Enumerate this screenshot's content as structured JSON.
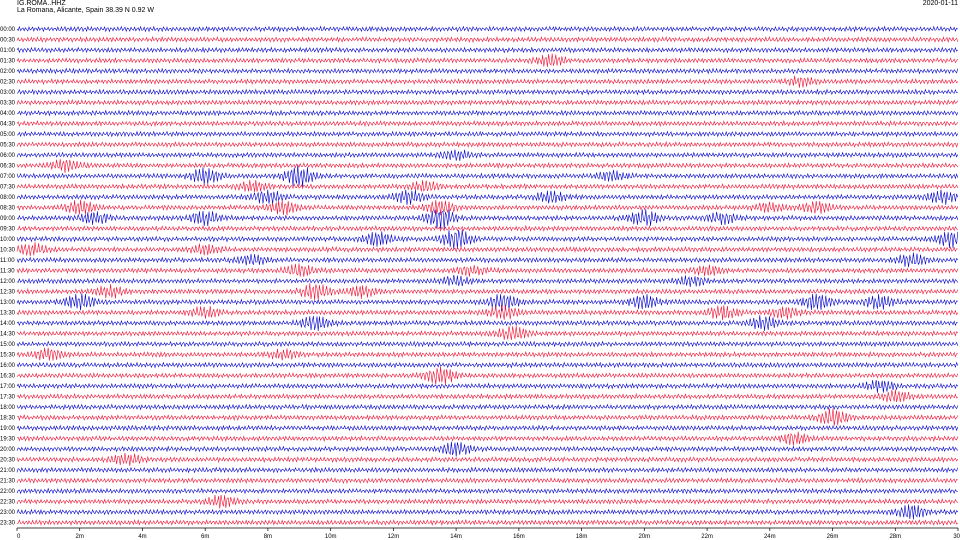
{
  "header": {
    "station": "IG.ROMA..HHZ",
    "location": "La Romana, Alicante, Spain   38.39 N 0.92 W",
    "date": "2020-01-11"
  },
  "chart_data": {
    "type": "line",
    "title": "",
    "xlabel": "",
    "ylabel": "",
    "colors": [
      "#0000cc",
      "#ee1133"
    ],
    "x_ticks": [
      "0",
      "2m",
      "4m",
      "6m",
      "8m",
      "10m",
      "12m",
      "14m",
      "16m",
      "18m",
      "20m",
      "22m",
      "24m",
      "26m",
      "28m",
      "30"
    ],
    "xlim": [
      0,
      30
    ],
    "row_labels": [
      "00:00",
      "00:30",
      "01:00",
      "01:30",
      "02:00",
      "02:30",
      "03:00",
      "03:30",
      "04:00",
      "04:30",
      "05:00",
      "05:30",
      "06:00",
      "06:30",
      "07:00",
      "07:30",
      "08:00",
      "08:30",
      "09:00",
      "09:30",
      "10:00",
      "10:30",
      "11:00",
      "11:30",
      "12:00",
      "12:30",
      "13:00",
      "13:30",
      "14:00",
      "14:30",
      "15:00",
      "15:30",
      "16:00",
      "16:30",
      "17:00",
      "17:30",
      "18:00",
      "18:30",
      "19:00",
      "19:30",
      "20:00",
      "20:30",
      "21:00",
      "21:30",
      "22:00",
      "22:30",
      "23:00",
      "23:30"
    ],
    "bursts": [
      {
        "row": 3,
        "minute": 17.0,
        "amp": 5
      },
      {
        "row": 5,
        "minute": 25.0,
        "amp": 4
      },
      {
        "row": 12,
        "minute": 14.0,
        "amp": 4
      },
      {
        "row": 13,
        "minute": 1.5,
        "amp": 5
      },
      {
        "row": 14,
        "minute": 6.0,
        "amp": 7
      },
      {
        "row": 14,
        "minute": 9.0,
        "amp": 9
      },
      {
        "row": 14,
        "minute": 19.0,
        "amp": 4
      },
      {
        "row": 15,
        "minute": 7.5,
        "amp": 5
      },
      {
        "row": 15,
        "minute": 13.0,
        "amp": 4
      },
      {
        "row": 16,
        "minute": 8.0,
        "amp": 6
      },
      {
        "row": 16,
        "minute": 12.5,
        "amp": 6
      },
      {
        "row": 16,
        "minute": 17.0,
        "amp": 5
      },
      {
        "row": 16,
        "minute": 29.5,
        "amp": 6
      },
      {
        "row": 17,
        "minute": 2.0,
        "amp": 6
      },
      {
        "row": 17,
        "minute": 8.5,
        "amp": 6
      },
      {
        "row": 17,
        "minute": 13.5,
        "amp": 6
      },
      {
        "row": 17,
        "minute": 24.0,
        "amp": 4
      },
      {
        "row": 17,
        "minute": 25.5,
        "amp": 5
      },
      {
        "row": 18,
        "minute": 2.5,
        "amp": 5
      },
      {
        "row": 18,
        "minute": 6.0,
        "amp": 6
      },
      {
        "row": 18,
        "minute": 13.5,
        "amp": 9
      },
      {
        "row": 18,
        "minute": 20.0,
        "amp": 7
      },
      {
        "row": 18,
        "minute": 22.5,
        "amp": 5
      },
      {
        "row": 20,
        "minute": 11.5,
        "amp": 6
      },
      {
        "row": 20,
        "minute": 14.0,
        "amp": 9
      },
      {
        "row": 20,
        "minute": 29.8,
        "amp": 7
      },
      {
        "row": 21,
        "minute": 0.5,
        "amp": 5
      },
      {
        "row": 21,
        "minute": 6.0,
        "amp": 4
      },
      {
        "row": 22,
        "minute": 7.5,
        "amp": 4
      },
      {
        "row": 22,
        "minute": 28.5,
        "amp": 6
      },
      {
        "row": 23,
        "minute": 9.0,
        "amp": 5
      },
      {
        "row": 23,
        "minute": 14.5,
        "amp": 4
      },
      {
        "row": 23,
        "minute": 22.0,
        "amp": 4
      },
      {
        "row": 24,
        "minute": 14.0,
        "amp": 4
      },
      {
        "row": 24,
        "minute": 21.5,
        "amp": 4
      },
      {
        "row": 25,
        "minute": 3.0,
        "amp": 5
      },
      {
        "row": 25,
        "minute": 9.5,
        "amp": 7
      },
      {
        "row": 25,
        "minute": 11.0,
        "amp": 5
      },
      {
        "row": 26,
        "minute": 2.0,
        "amp": 7
      },
      {
        "row": 26,
        "minute": 15.5,
        "amp": 7
      },
      {
        "row": 26,
        "minute": 20.0,
        "amp": 6
      },
      {
        "row": 26,
        "minute": 25.5,
        "amp": 7
      },
      {
        "row": 26,
        "minute": 27.5,
        "amp": 6
      },
      {
        "row": 27,
        "minute": 6.0,
        "amp": 5
      },
      {
        "row": 27,
        "minute": 15.5,
        "amp": 6
      },
      {
        "row": 27,
        "minute": 22.5,
        "amp": 6
      },
      {
        "row": 27,
        "minute": 24.5,
        "amp": 5
      },
      {
        "row": 28,
        "minute": 9.5,
        "amp": 6
      },
      {
        "row": 28,
        "minute": 23.8,
        "amp": 6
      },
      {
        "row": 29,
        "minute": 15.8,
        "amp": 6
      },
      {
        "row": 31,
        "minute": 1.0,
        "amp": 5
      },
      {
        "row": 31,
        "minute": 8.5,
        "amp": 4
      },
      {
        "row": 33,
        "minute": 13.5,
        "amp": 8
      },
      {
        "row": 34,
        "minute": 27.5,
        "amp": 5
      },
      {
        "row": 35,
        "minute": 28.0,
        "amp": 5
      },
      {
        "row": 37,
        "minute": 26.0,
        "amp": 7
      },
      {
        "row": 39,
        "minute": 24.8,
        "amp": 5
      },
      {
        "row": 40,
        "minute": 14.0,
        "amp": 6
      },
      {
        "row": 41,
        "minute": 3.5,
        "amp": 5
      },
      {
        "row": 45,
        "minute": 6.5,
        "amp": 5
      },
      {
        "row": 46,
        "minute": 28.5,
        "amp": 6
      }
    ]
  }
}
